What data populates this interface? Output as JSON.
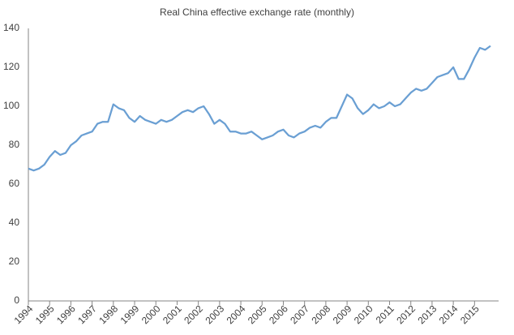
{
  "chart_data": {
    "type": "line",
    "title": "Real China effective exchange rate (monthly)",
    "categories": [
      "1994",
      null,
      null,
      null,
      "1995",
      null,
      null,
      null,
      "1996",
      null,
      null,
      null,
      "1997",
      null,
      null,
      null,
      "1998",
      null,
      null,
      null,
      "1999",
      null,
      null,
      null,
      "2000",
      null,
      null,
      null,
      "2001",
      null,
      null,
      null,
      "2002",
      null,
      null,
      null,
      "2003",
      null,
      null,
      null,
      "2004",
      null,
      null,
      null,
      "2005",
      null,
      null,
      null,
      "2006",
      null,
      null,
      null,
      "2007",
      null,
      null,
      null,
      "2008",
      null,
      null,
      null,
      "2009",
      null,
      null,
      null,
      "2010",
      null,
      null,
      null,
      "2011",
      null,
      null,
      null,
      "2012",
      null,
      null,
      null,
      "2013",
      null,
      null,
      null,
      "2014",
      null,
      null,
      null,
      "2015",
      null,
      null,
      null
    ],
    "values": [
      68,
      67,
      68,
      70,
      74,
      77,
      75,
      76,
      80,
      82,
      85,
      86,
      87,
      91,
      92,
      92,
      101,
      99,
      98,
      94,
      92,
      95,
      93,
      92,
      91,
      93,
      92,
      93,
      95,
      97,
      98,
      97,
      99,
      100,
      96,
      91,
      93,
      91,
      87,
      87,
      86,
      86,
      87,
      85,
      83,
      84,
      85,
      87,
      88,
      85,
      84,
      86,
      87,
      89,
      90,
      89,
      92,
      94,
      94,
      100,
      106,
      104,
      99,
      96,
      98,
      101,
      99,
      100,
      102,
      100,
      101,
      104,
      107,
      109,
      108,
      109,
      112,
      115,
      116,
      117,
      120,
      114,
      114,
      119,
      125,
      130,
      129,
      131
    ],
    "color": "#6a9fd3",
    "ylim": [
      0,
      140
    ],
    "yticks": [
      0,
      20,
      40,
      60,
      80,
      100,
      120,
      140
    ],
    "grid": false
  }
}
